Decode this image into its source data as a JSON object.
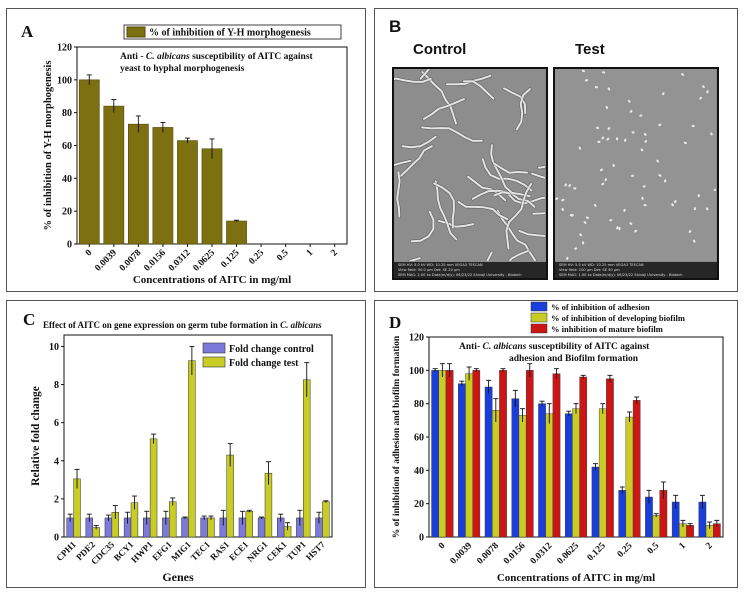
{
  "colors": {
    "olive": "#7d7010",
    "olive_edge": "#544a08",
    "blue": "#1a3ed9",
    "yellow_green": "#c8cc24",
    "red": "#cc1616",
    "lilac": "#7b79d9"
  },
  "panel_A": {
    "letter": "A",
    "chart_data": {
      "type": "bar",
      "title": "Anti - C. albicans susceptibility of AITC against yeast to hyphal morphogenesis",
      "title_lines": [
        "Anti - C. albicans susceptibility of AITC against",
        "yeast to hyphal morphogenesis"
      ],
      "legend": [
        "% of inhibition of Y-H morphogenesis"
      ],
      "xlabel": "Concentrations of AITC in mg/ml",
      "ylabel": "% of inhibition of Y-H morphogenesis",
      "ylim": [
        0,
        120
      ],
      "yticks": [
        0,
        20,
        40,
        60,
        80,
        100,
        120
      ],
      "categories": [
        "0",
        "0.0039",
        "0.0078",
        "0.0156",
        "0.0312",
        "0.0625",
        "0.125",
        "0.25",
        "0.5",
        "1",
        "2"
      ],
      "values": [
        100,
        84,
        73,
        71,
        63,
        58,
        14,
        0,
        0,
        0,
        0
      ],
      "errors": [
        3,
        4,
        5,
        3,
        1.5,
        6,
        0.5,
        0,
        0,
        0,
        0
      ]
    }
  },
  "panel_B": {
    "letter": "B",
    "control_label": "Control",
    "test_label": "Test",
    "control_footer_lines": [
      "SEM HV: 5.0 kV   WD: 10.25 mm          VEGA3 TESCAN",
      "View field: 50.0 μm   Det: SE      20 μm",
      "SEM MAG: 2.00 kx   Date(m/d/y): 06/23/22   Shivaji University - Biotech"
    ],
    "test_footer_lines": [
      "SEM HV: 5.0 kV   WD: 10.25 mm          VEGA3 TESCAN",
      "View field: 100 μm   Det: SE      50 μm",
      "SEM MAG: 1.00 kx   Date(m/d/y): 06/23/22   Shivaji University - Biotech"
    ]
  },
  "panel_C": {
    "letter": "C",
    "chart_data": {
      "type": "bar",
      "title": "Effect of AITC on gene expression on germ tube formation in C. albicans",
      "xlabel": "Genes",
      "ylabel": "Relative fold change",
      "ylim": [
        0,
        10.6
      ],
      "yticks": [
        0,
        2,
        4,
        6,
        8,
        10
      ],
      "categories": [
        "CPH1",
        "PDE2",
        "CDC35",
        "BCY1",
        "HWP1",
        "EFG1",
        "MIG1",
        "TEC1",
        "RAS1",
        "ECE1",
        "NRG1",
        "CEK1",
        "TUP1",
        "HST7"
      ],
      "series": [
        {
          "name": "Fold change control",
          "values": [
            1,
            1,
            1,
            1,
            1,
            1,
            1,
            1,
            1,
            1,
            1,
            1,
            1,
            1
          ],
          "errors": [
            0.2,
            0.2,
            0.15,
            0.3,
            0.35,
            0.35,
            0.05,
            0.1,
            0.4,
            0.35,
            0.05,
            0.2,
            0.4,
            0.3
          ]
        },
        {
          "name": "Fold change test",
          "values": [
            3.05,
            0.5,
            1.3,
            1.8,
            5.15,
            1.85,
            9.25,
            1.0,
            4.3,
            1.35,
            3.35,
            0.55,
            8.25,
            1.85
          ],
          "errors": [
            0.5,
            0.1,
            0.35,
            0.35,
            0.25,
            0.2,
            0.75,
            0.1,
            0.6,
            0.05,
            0.6,
            0.2,
            0.9,
            0.05
          ]
        }
      ]
    }
  },
  "panel_D": {
    "letter": "D",
    "chart_data": {
      "type": "bar",
      "title": "Anti- C. albicans susceptibility of AITC against adhesion and Biofilm formation",
      "title_lines": [
        "Anti- C. albicans susceptibility of AITC against",
        "adhesion and Biofilm formation"
      ],
      "xlabel": "Concentrations of AITC in mg/ml",
      "ylabel": "% of inhibition of adhesion and biofilm formation",
      "ylim": [
        0,
        120
      ],
      "yticks": [
        0,
        20,
        40,
        60,
        80,
        100,
        120
      ],
      "categories": [
        "0",
        "0.0039",
        "0.0078",
        "0.0156",
        "0.0312",
        "0.0625",
        "0.125",
        "0.25",
        "0.5",
        "1",
        "2"
      ],
      "series": [
        {
          "name": "% of inhibition of adhesion",
          "values": [
            100,
            92,
            90,
            83,
            80,
            74,
            42,
            28,
            24,
            21,
            21
          ],
          "errors": [
            1,
            1.5,
            4,
            5,
            1.5,
            1.5,
            2,
            2,
            4,
            4,
            4
          ]
        },
        {
          "name": "% of inhibition of developing biofilm",
          "values": [
            100,
            98,
            76,
            73,
            74,
            77,
            77,
            72,
            13,
            8,
            7
          ],
          "errors": [
            4,
            4,
            7,
            4,
            6,
            3,
            3,
            3,
            1,
            2,
            2
          ]
        },
        {
          "name": "% inhibition of mature biofilm",
          "values": [
            100,
            100,
            100,
            100,
            98,
            96,
            95,
            82,
            28,
            7,
            8
          ],
          "errors": [
            4,
            1,
            1,
            4,
            3,
            1,
            2,
            2,
            5,
            1,
            2
          ]
        }
      ]
    }
  }
}
